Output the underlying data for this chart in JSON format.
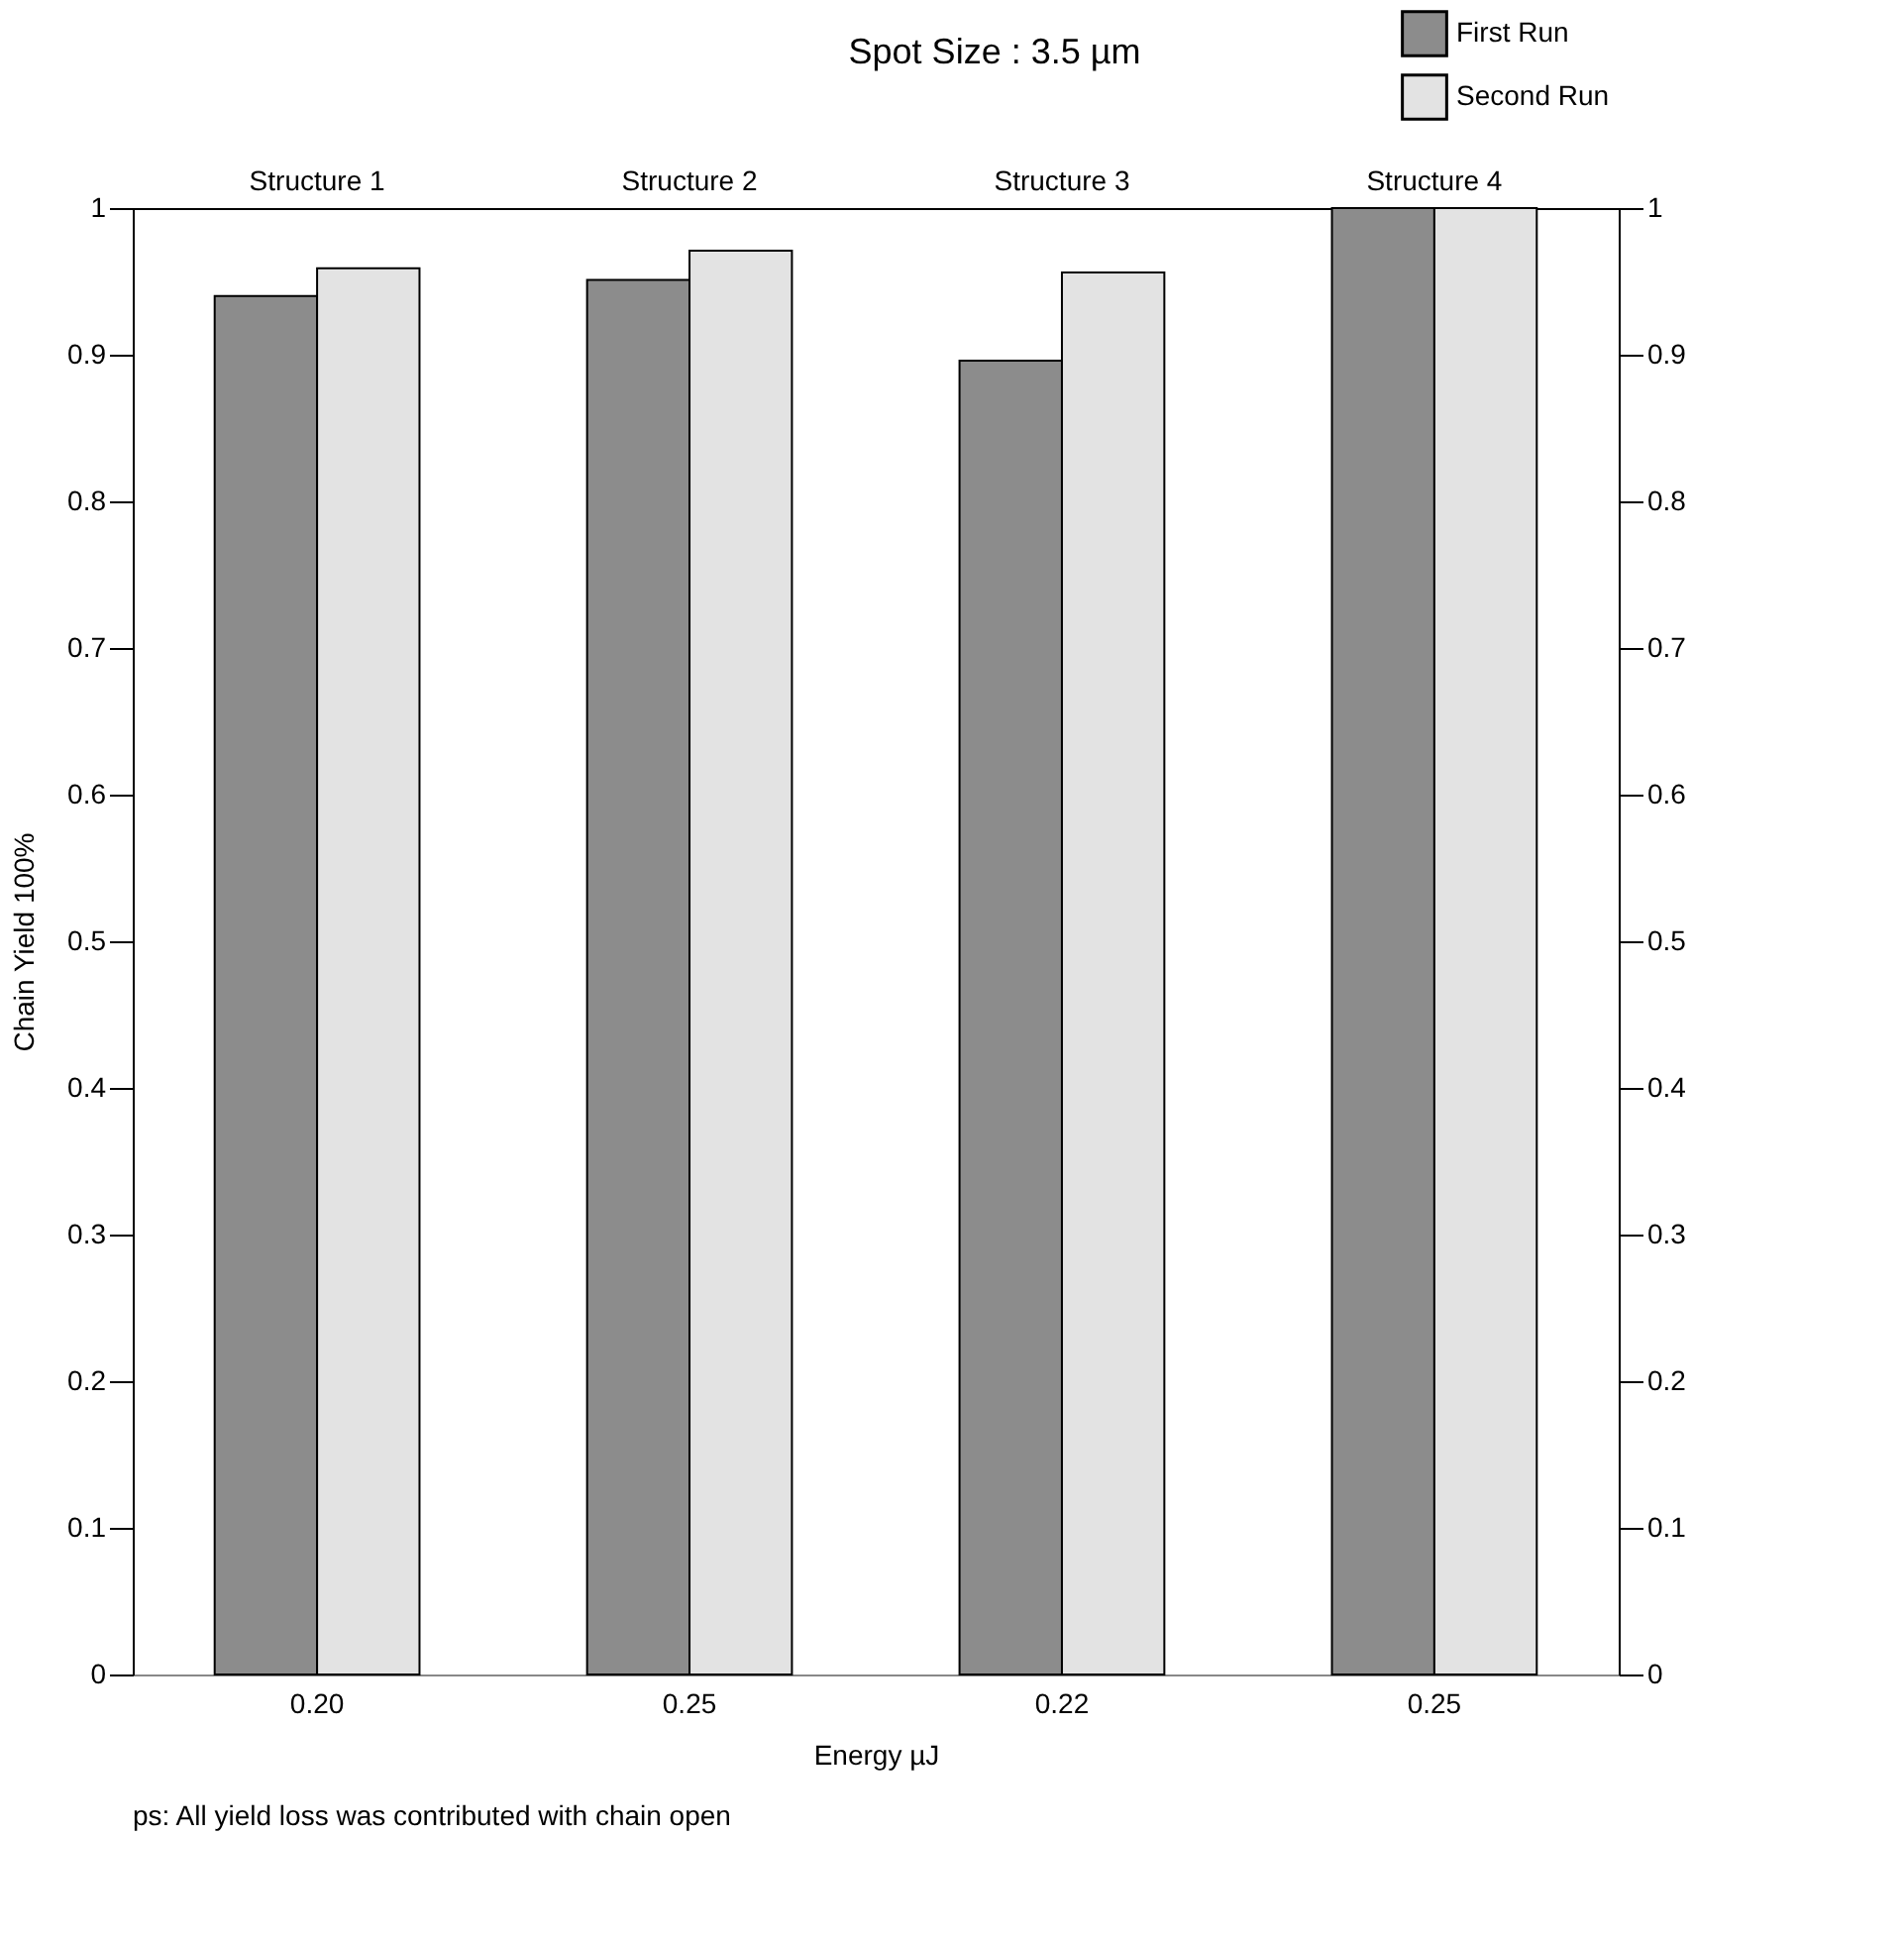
{
  "chart_data": {
    "type": "bar",
    "title": "Spot Size : 3.5 µm",
    "xlabel": "Energy   µJ",
    "ylabel": "Chain Yield    100%",
    "categories": [
      "0.20",
      "0.25",
      "0.22",
      "0.25"
    ],
    "series": [
      {
        "name": "First Run",
        "color": "#8c8c8c",
        "values": [
          0.94,
          0.951,
          0.896,
          1.0
        ]
      },
      {
        "name": "Second Run",
        "color": "#e3e3e3",
        "values": [
          0.959,
          0.971,
          0.956,
          1.0
        ]
      }
    ],
    "ylim": [
      0,
      1
    ],
    "yticks": [
      0,
      0.1,
      0.2,
      0.3,
      0.4,
      0.5,
      0.6,
      0.7,
      0.8,
      0.9,
      1
    ],
    "y2lim": [
      0,
      1
    ],
    "y2ticks": [
      0,
      0.1,
      0.2,
      0.3,
      0.4,
      0.5,
      0.6,
      0.7,
      0.8,
      0.9,
      1
    ],
    "annotations": [
      "Structure 1",
      "Structure 2",
      "Structure 3",
      "Structure 4",
      "ps: All yield loss was contributed with chain open"
    ],
    "legend": "top right",
    "grid": false
  }
}
